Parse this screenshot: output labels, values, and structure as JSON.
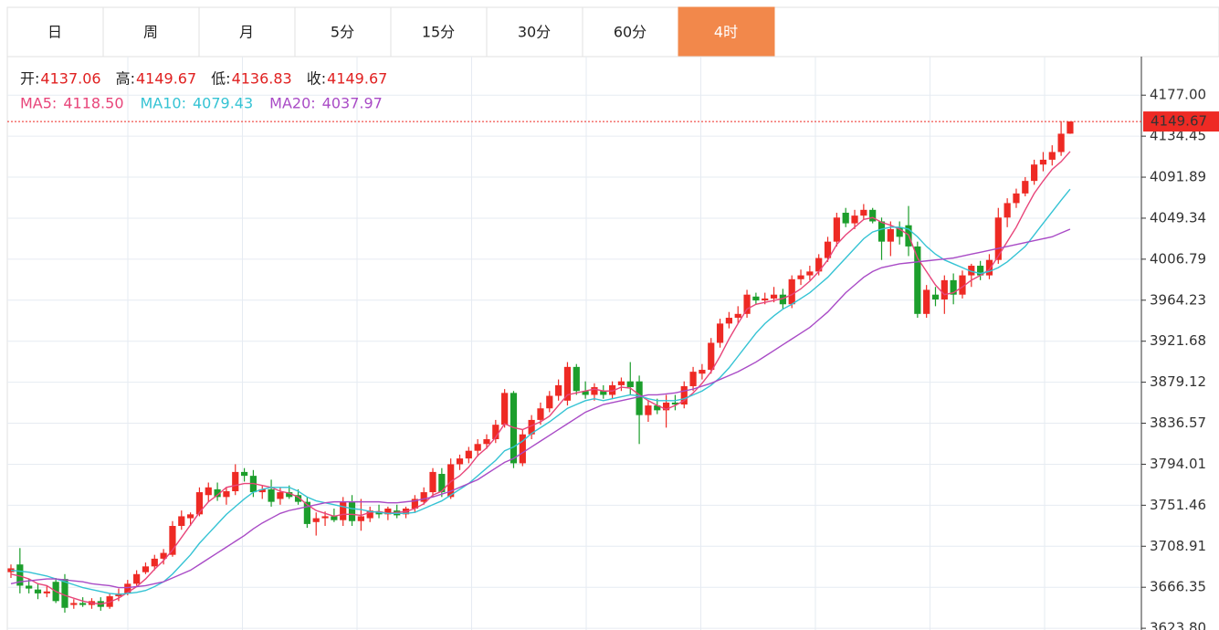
{
  "tabs": {
    "items": [
      "日",
      "周",
      "月",
      "5分",
      "15分",
      "30分",
      "60分",
      "4时"
    ],
    "active": 7
  },
  "readout": [
    {
      "label": "开:",
      "text": "4137.06"
    },
    {
      "label": "高:",
      "text": "4149.67"
    },
    {
      "label": "低:",
      "text": "4136.83"
    },
    {
      "label": "收:",
      "text": "4149.67"
    }
  ],
  "chart_data": {
    "type": "candlestick",
    "up_color": "#ee2a24",
    "down_color": "#1c9e2c",
    "ylim": [
      3622,
      4217
    ],
    "yticks": [
      {
        "value": 4177,
        "label": "4177.00"
      },
      4134.45,
      4091.89,
      4049.34,
      4006.79,
      3964.23,
      3921.68,
      3879.12,
      3836.57,
      3794.01,
      3751.46,
      3708.91,
      3666.35,
      {
        "value": 3623.8,
        "label": "3623.80"
      }
    ],
    "grid": true,
    "last_price": {
      "value": 4149.67,
      "color": "#ee2a24"
    },
    "ohlc": [
      [
        3682,
        3690,
        3676,
        3686
      ],
      [
        3690,
        3707,
        3660,
        3668
      ],
      [
        3668,
        3675,
        3660,
        3665
      ],
      [
        3664,
        3670,
        3654,
        3660
      ],
      [
        3660,
        3668,
        3656,
        3662
      ],
      [
        3672,
        3676,
        3650,
        3652
      ],
      [
        3675,
        3680,
        3640,
        3645
      ],
      [
        3648,
        3654,
        3644,
        3650
      ],
      [
        3650,
        3656,
        3646,
        3648
      ],
      [
        3648,
        3655,
        3644,
        3652
      ],
      [
        3652,
        3656,
        3642,
        3646
      ],
      [
        3646,
        3660,
        3644,
        3657
      ],
      [
        3657,
        3665,
        3652,
        3660
      ],
      [
        3660,
        3674,
        3658,
        3670
      ],
      [
        3670,
        3684,
        3668,
        3680
      ],
      [
        3682,
        3692,
        3680,
        3688
      ],
      [
        3688,
        3700,
        3684,
        3696
      ],
      [
        3696,
        3706,
        3690,
        3702
      ],
      [
        3700,
        3735,
        3698,
        3730
      ],
      [
        3730,
        3746,
        3726,
        3740
      ],
      [
        3738,
        3744,
        3730,
        3742
      ],
      [
        3742,
        3770,
        3740,
        3765
      ],
      [
        3762,
        3775,
        3755,
        3770
      ],
      [
        3768,
        3775,
        3756,
        3760
      ],
      [
        3760,
        3770,
        3752,
        3766
      ],
      [
        3766,
        3794,
        3762,
        3786
      ],
      [
        3786,
        3790,
        3776,
        3782
      ],
      [
        3782,
        3788,
        3760,
        3765
      ],
      [
        3765,
        3772,
        3758,
        3768
      ],
      [
        3768,
        3778,
        3750,
        3755
      ],
      [
        3758,
        3770,
        3752,
        3765
      ],
      [
        3765,
        3772,
        3758,
        3760
      ],
      [
        3762,
        3768,
        3752,
        3755
      ],
      [
        3755,
        3760,
        3728,
        3732
      ],
      [
        3734,
        3744,
        3720,
        3738
      ],
      [
        3738,
        3745,
        3730,
        3740
      ],
      [
        3740,
        3748,
        3734,
        3736
      ],
      [
        3736,
        3760,
        3730,
        3755
      ],
      [
        3755,
        3762,
        3730,
        3735
      ],
      [
        3735,
        3758,
        3725,
        3740
      ],
      [
        3738,
        3750,
        3734,
        3746
      ],
      [
        3745,
        3752,
        3738,
        3742
      ],
      [
        3742,
        3750,
        3736,
        3748
      ],
      [
        3746,
        3752,
        3738,
        3741
      ],
      [
        3742,
        3750,
        3738,
        3748
      ],
      [
        3748,
        3762,
        3744,
        3758
      ],
      [
        3755,
        3770,
        3752,
        3765
      ],
      [
        3765,
        3790,
        3760,
        3786
      ],
      [
        3784,
        3790,
        3760,
        3765
      ],
      [
        3760,
        3800,
        3758,
        3794
      ],
      [
        3794,
        3804,
        3788,
        3800
      ],
      [
        3800,
        3812,
        3795,
        3808
      ],
      [
        3808,
        3820,
        3802,
        3815
      ],
      [
        3815,
        3825,
        3810,
        3820
      ],
      [
        3820,
        3840,
        3816,
        3835
      ],
      [
        3835,
        3872,
        3832,
        3868
      ],
      [
        3868,
        3870,
        3790,
        3795
      ],
      [
        3795,
        3830,
        3792,
        3825
      ],
      [
        3825,
        3845,
        3820,
        3840
      ],
      [
        3840,
        3858,
        3835,
        3852
      ],
      [
        3852,
        3870,
        3848,
        3865
      ],
      [
        3865,
        3882,
        3860,
        3876
      ],
      [
        3860,
        3900,
        3855,
        3895
      ],
      [
        3895,
        3898,
        3866,
        3870
      ],
      [
        3870,
        3880,
        3862,
        3866
      ],
      [
        3866,
        3878,
        3860,
        3874
      ],
      [
        3870,
        3876,
        3862,
        3866
      ],
      [
        3866,
        3880,
        3862,
        3876
      ],
      [
        3876,
        3884,
        3870,
        3880
      ],
      [
        3880,
        3900,
        3866,
        3874
      ],
      [
        3880,
        3886,
        3815,
        3845
      ],
      [
        3845,
        3860,
        3838,
        3855
      ],
      [
        3855,
        3862,
        3846,
        3850
      ],
      [
        3850,
        3866,
        3832,
        3858
      ],
      [
        3858,
        3866,
        3850,
        3856
      ],
      [
        3856,
        3880,
        3852,
        3875
      ],
      [
        3875,
        3895,
        3870,
        3890
      ],
      [
        3888,
        3898,
        3882,
        3892
      ],
      [
        3892,
        3925,
        3888,
        3920
      ],
      [
        3920,
        3945,
        3915,
        3940
      ],
      [
        3940,
        3952,
        3935,
        3946
      ],
      [
        3946,
        3958,
        3940,
        3950
      ],
      [
        3950,
        3975,
        3946,
        3970
      ],
      [
        3968,
        3972,
        3960,
        3964
      ],
      [
        3964,
        3972,
        3960,
        3966
      ],
      [
        3966,
        3978,
        3962,
        3970
      ],
      [
        3970,
        3976,
        3955,
        3960
      ],
      [
        3960,
        3990,
        3956,
        3986
      ],
      [
        3986,
        3996,
        3980,
        3990
      ],
      [
        3990,
        4000,
        3985,
        3994
      ],
      [
        3994,
        4012,
        3990,
        4008
      ],
      [
        4008,
        4030,
        4004,
        4025
      ],
      [
        4025,
        4055,
        4020,
        4050
      ],
      [
        4055,
        4060,
        4040,
        4044
      ],
      [
        4044,
        4058,
        4038,
        4052
      ],
      [
        4052,
        4064,
        4048,
        4058
      ],
      [
        4058,
        4060,
        4044,
        4046
      ],
      [
        4046,
        4050,
        4006,
        4025
      ],
      [
        4025,
        4046,
        4010,
        4038
      ],
      [
        4040,
        4046,
        4022,
        4030
      ],
      [
        4042,
        4062,
        4010,
        4020
      ],
      [
        4020,
        4025,
        3946,
        3950
      ],
      [
        3950,
        3980,
        3946,
        3975
      ],
      [
        3970,
        3978,
        3958,
        3965
      ],
      [
        3965,
        3990,
        3950,
        3985
      ],
      [
        3985,
        3992,
        3960,
        3970
      ],
      [
        3970,
        3995,
        3966,
        3990
      ],
      [
        3990,
        4002,
        3978,
        4000
      ],
      [
        4000,
        4005,
        3985,
        3990
      ],
      [
        3990,
        4012,
        3986,
        4006
      ],
      [
        4006,
        4060,
        4002,
        4050
      ],
      [
        4050,
        4070,
        4040,
        4065
      ],
      [
        4065,
        4080,
        4060,
        4075
      ],
      [
        4075,
        4092,
        4072,
        4088
      ],
      [
        4088,
        4110,
        4084,
        4105
      ],
      [
        4105,
        4118,
        4098,
        4110
      ],
      [
        4110,
        4125,
        4104,
        4118
      ],
      [
        4118,
        4150,
        4114,
        4137
      ],
      [
        4137.06,
        4149.67,
        4136.83,
        4149.67
      ]
    ],
    "series": [
      {
        "name": "MA5:",
        "value_label": "4118.50",
        "color": "#e8457a",
        "values": [
          3680,
          3678,
          3675,
          3670,
          3668,
          3662,
          3658,
          3655,
          3652,
          3650,
          3649,
          3651,
          3655,
          3661,
          3667,
          3675,
          3685,
          3694,
          3705,
          3718,
          3731,
          3744,
          3755,
          3762,
          3770,
          3772,
          3774,
          3774,
          3772,
          3770,
          3766,
          3764,
          3760,
          3752,
          3746,
          3743,
          3740,
          3742,
          3742,
          3741,
          3744,
          3745,
          3743,
          3744,
          3745,
          3748,
          3753,
          3762,
          3766,
          3776,
          3782,
          3791,
          3803,
          3811,
          3822,
          3836,
          3832,
          3830,
          3834,
          3838,
          3844,
          3855,
          3866,
          3868,
          3870,
          3872,
          3870,
          3870,
          3874,
          3873,
          3866,
          3860,
          3855,
          3851,
          3855,
          3860,
          3868,
          3878,
          3890,
          3906,
          3924,
          3940,
          3955,
          3960,
          3962,
          3964,
          3966,
          3970,
          3976,
          3984,
          3994,
          4006,
          4022,
          4032,
          4040,
          4048,
          4050,
          4045,
          4042,
          4038,
          4032,
          4008,
          3994,
          3980,
          3970,
          3972,
          3978,
          3985,
          3990,
          3996,
          4010,
          4025,
          4040,
          4058,
          4075,
          4088,
          4100,
          4108,
          4118.5
        ]
      },
      {
        "name": "MA10:",
        "value_label": "4079.43",
        "color": "#35c3d4",
        "values": [
          3684,
          3683,
          3682,
          3680,
          3678,
          3675,
          3672,
          3669,
          3666,
          3664,
          3662,
          3660,
          3659,
          3660,
          3661,
          3663,
          3667,
          3672,
          3680,
          3690,
          3700,
          3712,
          3722,
          3732,
          3742,
          3750,
          3758,
          3765,
          3768,
          3770,
          3770,
          3770,
          3766,
          3760,
          3756,
          3754,
          3752,
          3750,
          3748,
          3747,
          3745,
          3744,
          3743,
          3743,
          3743,
          3744,
          3748,
          3752,
          3756,
          3762,
          3768,
          3774,
          3782,
          3790,
          3798,
          3808,
          3812,
          3818,
          3826,
          3832,
          3838,
          3845,
          3852,
          3856,
          3860,
          3862,
          3860,
          3862,
          3864,
          3866,
          3865,
          3862,
          3860,
          3860,
          3860,
          3862,
          3866,
          3870,
          3876,
          3884,
          3894,
          3906,
          3918,
          3930,
          3940,
          3948,
          3955,
          3960,
          3966,
          3972,
          3980,
          3988,
          3998,
          4008,
          4018,
          4028,
          4035,
          4038,
          4040,
          4040,
          4038,
          4030,
          4020,
          4012,
          4006,
          4002,
          3998,
          3994,
          3992,
          3994,
          3998,
          4004,
          4012,
          4020,
          4032,
          4044,
          4056,
          4068,
          4079.43
        ]
      },
      {
        "name": "MA20:",
        "value_label": "4037.97",
        "color": "#a94bc6",
        "values": [
          3670,
          3672,
          3673,
          3674,
          3675,
          3675,
          3674,
          3673,
          3672,
          3670,
          3669,
          3668,
          3666,
          3666,
          3667,
          3668,
          3670,
          3672,
          3676,
          3680,
          3684,
          3690,
          3696,
          3702,
          3708,
          3714,
          3720,
          3727,
          3733,
          3738,
          3743,
          3746,
          3748,
          3750,
          3752,
          3754,
          3755,
          3755,
          3755,
          3755,
          3755,
          3755,
          3754,
          3754,
          3755,
          3756,
          3758,
          3760,
          3763,
          3766,
          3770,
          3774,
          3778,
          3784,
          3790,
          3796,
          3800,
          3806,
          3812,
          3818,
          3824,
          3830,
          3836,
          3842,
          3848,
          3852,
          3856,
          3858,
          3860,
          3862,
          3864,
          3866,
          3866,
          3867,
          3868,
          3870,
          3872,
          3875,
          3878,
          3882,
          3886,
          3890,
          3895,
          3900,
          3906,
          3912,
          3918,
          3924,
          3930,
          3936,
          3944,
          3952,
          3962,
          3972,
          3980,
          3988,
          3994,
          3998,
          4000,
          4002,
          4003,
          4004,
          4005,
          4006,
          4007,
          4008,
          4010,
          4012,
          4014,
          4016,
          4018,
          4020,
          4022,
          4024,
          4026,
          4028,
          4030,
          4034,
          4037.97
        ]
      }
    ]
  }
}
